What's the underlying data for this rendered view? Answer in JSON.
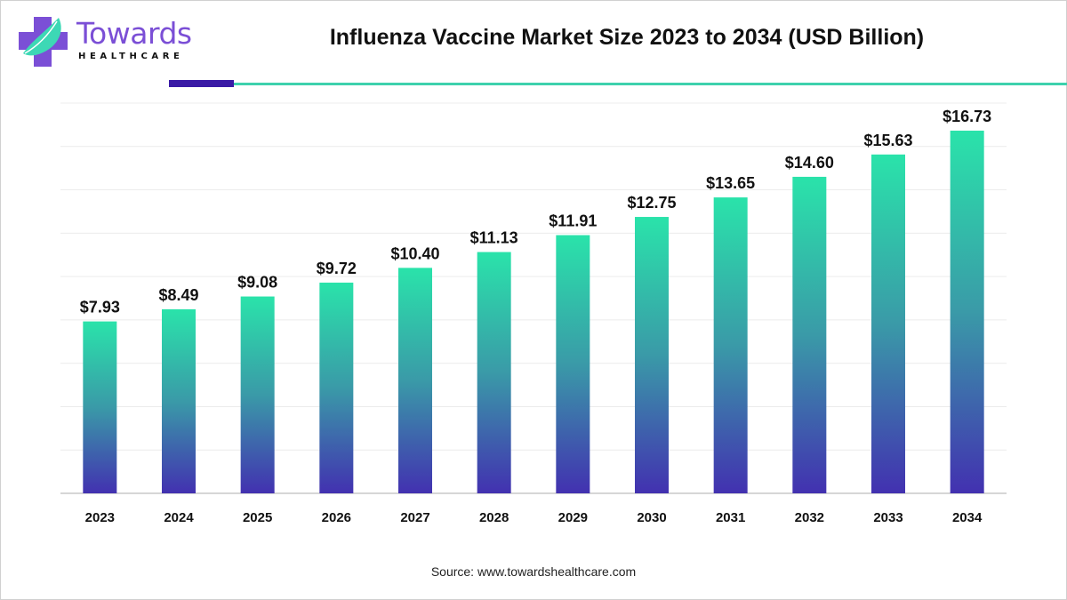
{
  "brand": {
    "name": "Towards",
    "subtitle": "HEALTHCARE",
    "colors": {
      "purple": "#7b4fd6",
      "teal": "#3dd1ad",
      "dark_purple": "#3a1aa6"
    }
  },
  "source": "Source: www.towardshealthcare.com",
  "chart_data": {
    "type": "bar",
    "title": "Influenza Vaccine Market Size 2023 to 2034 (USD Billion)",
    "xlabel": "",
    "ylabel": "",
    "categories": [
      "2023",
      "2024",
      "2025",
      "2026",
      "2027",
      "2028",
      "2029",
      "2030",
      "2031",
      "2032",
      "2033",
      "2034"
    ],
    "values": [
      7.93,
      8.49,
      9.08,
      9.72,
      10.4,
      11.13,
      11.91,
      12.75,
      13.65,
      14.6,
      15.63,
      16.73
    ],
    "data_labels": [
      "$7.93",
      "$8.49",
      "$9.08",
      "$9.72",
      "$10.40",
      "$11.13",
      "$11.91",
      "$12.75",
      "$13.65",
      "$14.60",
      "$15.63",
      "$16.73"
    ],
    "ylim": [
      0,
      18
    ],
    "grid": true,
    "grid_step": 2,
    "y_tick_labels_shown": false,
    "legend": "none",
    "bar_gradient": [
      "#2ae3aa",
      "#3a9aa8",
      "#4231b0"
    ]
  }
}
